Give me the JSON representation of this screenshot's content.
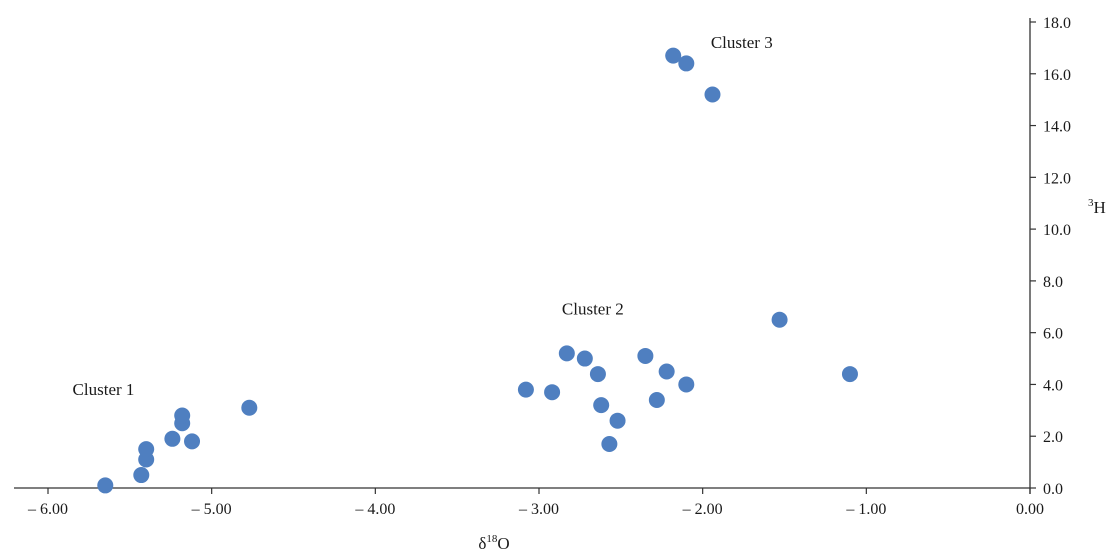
{
  "chart_data": {
    "type": "scatter",
    "title": "",
    "xlabel": {
      "base": "δ",
      "sup": "18",
      "main": "O"
    },
    "ylabel": {
      "sup": "3",
      "main": "H"
    },
    "xlim": [
      -6.0,
      0.0
    ],
    "ylim": [
      0.0,
      18.0
    ],
    "xticks": [
      -6.0,
      -5.0,
      -4.0,
      -3.0,
      -2.0,
      -1.0,
      0.0
    ],
    "xtick_labels": [
      "– 6.00",
      "– 5.00",
      "– 4.00",
      "– 3.00",
      "– 2.00",
      "– 1.00",
      "0.00"
    ],
    "yticks": [
      0,
      2,
      4,
      6,
      8,
      10,
      12,
      14,
      16,
      18
    ],
    "ytick_labels": [
      "0.0",
      "2.0",
      "4.0",
      "6.0",
      "8.0",
      "10.0",
      "12.0",
      "14.0",
      "16.0",
      "18.0"
    ],
    "y_axis_position": "right",
    "grid": false,
    "marker_color": "#4f7fc0",
    "series": [
      {
        "points": [
          {
            "x": -5.65,
            "y": 0.1
          },
          {
            "x": -5.43,
            "y": 0.5
          },
          {
            "x": -5.4,
            "y": 1.1
          },
          {
            "x": -5.4,
            "y": 1.5
          },
          {
            "x": -5.24,
            "y": 1.9
          },
          {
            "x": -5.12,
            "y": 1.8
          },
          {
            "x": -5.18,
            "y": 2.5
          },
          {
            "x": -5.18,
            "y": 2.8
          },
          {
            "x": -4.77,
            "y": 3.1
          },
          {
            "x": -3.08,
            "y": 3.8
          },
          {
            "x": -2.92,
            "y": 3.7
          },
          {
            "x": -2.83,
            "y": 5.2
          },
          {
            "x": -2.72,
            "y": 5.0
          },
          {
            "x": -2.64,
            "y": 4.4
          },
          {
            "x": -2.62,
            "y": 3.2
          },
          {
            "x": -2.52,
            "y": 2.6
          },
          {
            "x": -2.57,
            "y": 1.7
          },
          {
            "x": -2.35,
            "y": 5.1
          },
          {
            "x": -2.22,
            "y": 4.5
          },
          {
            "x": -2.28,
            "y": 3.4
          },
          {
            "x": -2.1,
            "y": 4.0
          },
          {
            "x": -1.53,
            "y": 6.5
          },
          {
            "x": -1.1,
            "y": 4.4
          },
          {
            "x": -2.18,
            "y": 16.7
          },
          {
            "x": -2.1,
            "y": 16.4
          },
          {
            "x": -1.94,
            "y": 15.2
          }
        ]
      }
    ],
    "annotations": [
      {
        "text": "Cluster 1",
        "x": -5.85,
        "y": 3.6
      },
      {
        "text": "Cluster 2",
        "x": -2.86,
        "y": 6.7
      },
      {
        "text": "Cluster 3",
        "x": -1.95,
        "y": 17.0
      }
    ]
  }
}
